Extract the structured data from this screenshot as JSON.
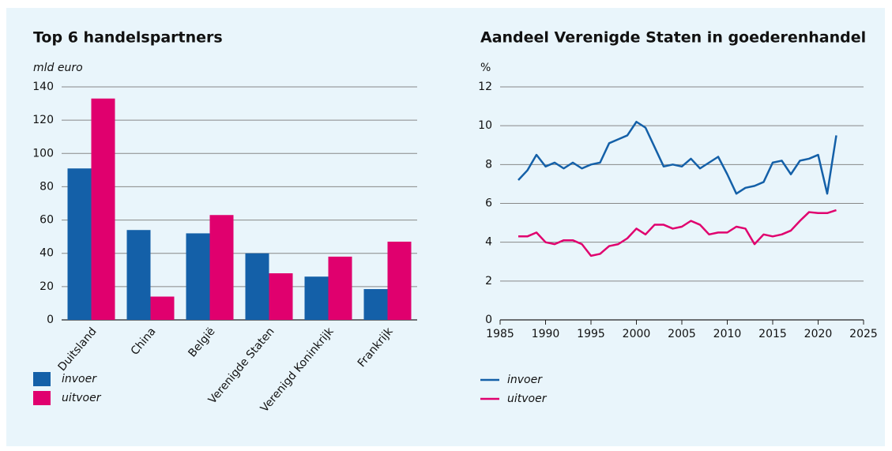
{
  "chart_data": [
    {
      "type": "bar",
      "title": "Top 6 handelspartners",
      "y_label": "mld euro",
      "categories": [
        "Duitsland",
        "China",
        "België",
        "Verenigde Staten",
        "Verenigd Koninkrijk",
        "Frankrijk"
      ],
      "series": [
        {
          "name": "invoer",
          "color": "#1460a8",
          "values": [
            91,
            54,
            52,
            40,
            26,
            18.5
          ]
        },
        {
          "name": "uitvoer",
          "color": "#e0006e",
          "values": [
            133,
            14,
            63,
            28,
            38,
            47
          ]
        }
      ],
      "ylim": [
        0,
        140
      ],
      "yticks": [
        0,
        20,
        40,
        60,
        80,
        100,
        120,
        140
      ],
      "grid": true,
      "legend": "bottom-left"
    },
    {
      "type": "line",
      "title": "Aandeel Verenigde Staten in goederenhandel",
      "y_label": "%",
      "x": [
        1987,
        1988,
        1989,
        1990,
        1991,
        1992,
        1993,
        1994,
        1995,
        1996,
        1997,
        1998,
        1999,
        2000,
        2001,
        2002,
        2003,
        2004,
        2005,
        2006,
        2007,
        2008,
        2009,
        2010,
        2011,
        2012,
        2013,
        2014,
        2015,
        2016,
        2017,
        2018,
        2019,
        2020,
        2021,
        2022
      ],
      "series": [
        {
          "name": "invoer",
          "color": "#1460a8",
          "values": [
            7.2,
            7.7,
            8.5,
            7.9,
            8.1,
            7.8,
            8.1,
            7.8,
            8.0,
            8.1,
            9.1,
            9.3,
            9.5,
            10.2,
            9.9,
            8.9,
            7.9,
            8.0,
            7.9,
            8.3,
            7.8,
            8.1,
            8.4,
            7.5,
            6.5,
            6.8,
            6.9,
            7.1,
            8.1,
            8.2,
            7.5,
            8.2,
            8.3,
            8.5,
            6.5,
            9.5
          ]
        },
        {
          "name": "uitvoer",
          "color": "#e0006e",
          "values": [
            4.3,
            4.3,
            4.5,
            4.0,
            3.9,
            4.1,
            4.1,
            3.9,
            3.3,
            3.4,
            3.8,
            3.9,
            4.2,
            4.7,
            4.4,
            4.9,
            4.9,
            4.7,
            4.8,
            5.1,
            4.9,
            4.4,
            4.5,
            4.5,
            4.8,
            4.7,
            3.9,
            4.4,
            4.3,
            4.4,
            4.6,
            5.1,
            5.55,
            5.5,
            5.5,
            5.65
          ]
        }
      ],
      "xlim": [
        1985,
        2025
      ],
      "xticks": [
        1985,
        1990,
        1995,
        2000,
        2005,
        2010,
        2015,
        2020,
        2025
      ],
      "ylim": [
        0,
        12
      ],
      "yticks": [
        0,
        2,
        4,
        6,
        8,
        10,
        12
      ],
      "grid": true,
      "legend": "bottom-left"
    }
  ]
}
